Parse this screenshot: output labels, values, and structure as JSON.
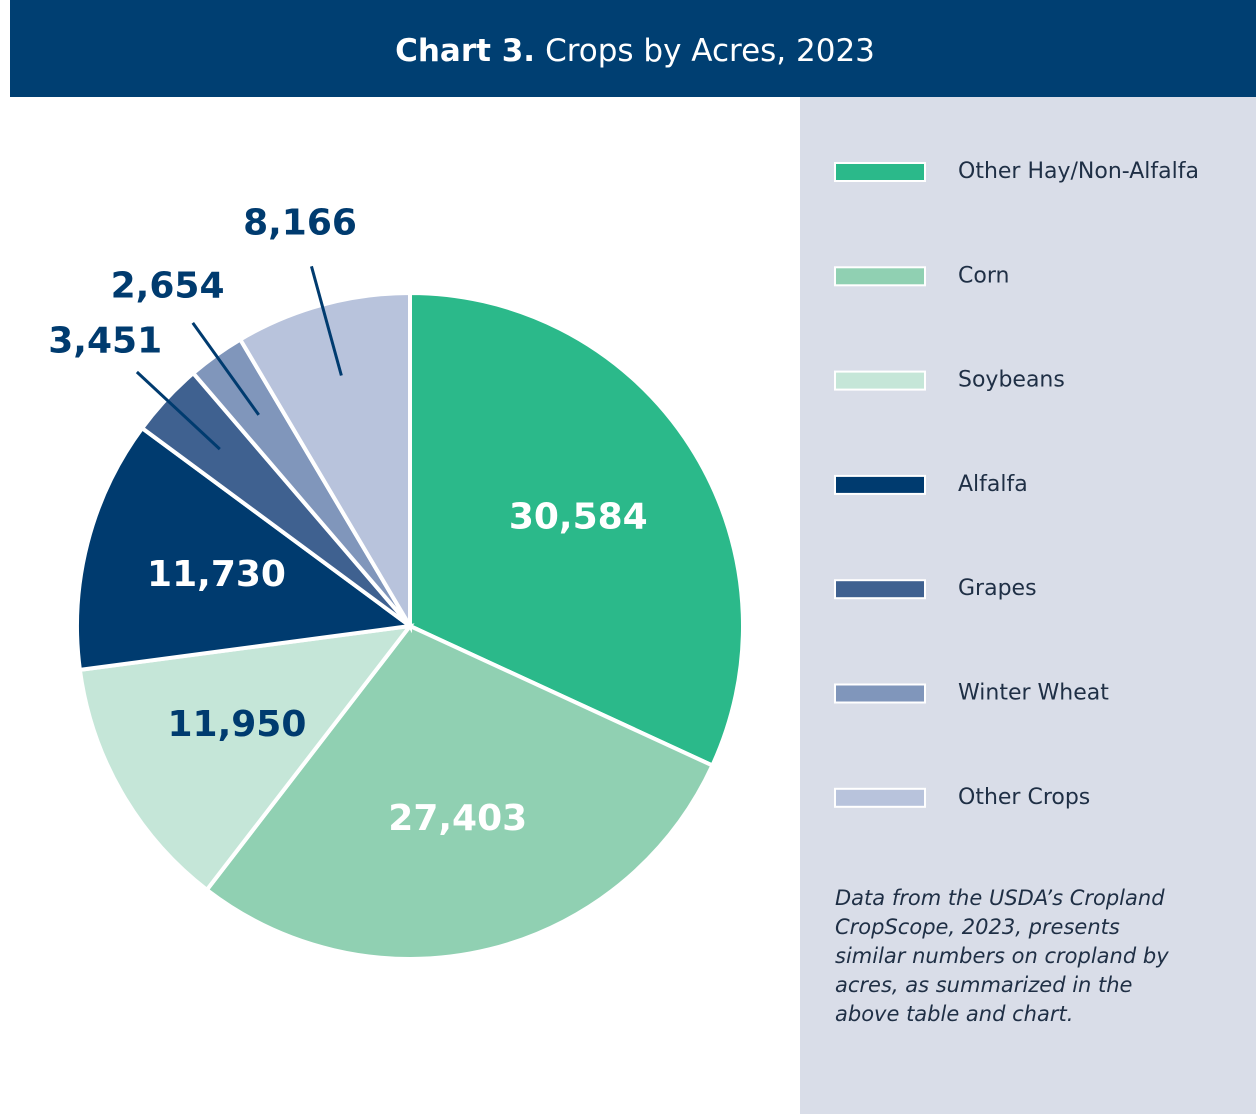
{
  "chart_data": {
    "type": "pie",
    "title_label": "Chart 3.",
    "title": "Crops by Acres, 2023",
    "categories": [
      "Other Hay/Non-Alfalfa",
      "Corn",
      "Soybeans",
      "Alfalfa",
      "Grapes",
      "Winter Wheat",
      "Other Crops"
    ],
    "values": [
      30584,
      27403,
      11950,
      11730,
      3451,
      2654,
      8166
    ],
    "value_labels": [
      "30,584",
      "27,403",
      "11,950",
      "11,730",
      "3,451",
      "2,654",
      "8,166"
    ],
    "colors": [
      "#2bb98a",
      "#90d0b2",
      "#c5e6d8",
      "#003b6f",
      "#3f6190",
      "#8096bb",
      "#b8c3dc"
    ],
    "legend": "right",
    "note": "Data from the USDA’s Cropland CropScope, 2023, presents similar numbers on cropland by acres, as summarized in the above table and chart."
  }
}
